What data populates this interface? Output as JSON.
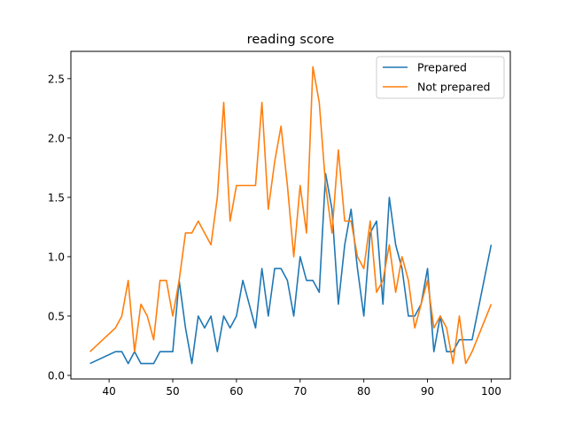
{
  "chart_data": {
    "type": "line",
    "title": "reading score",
    "xlabel": "",
    "ylabel": "",
    "xlim": [
      34,
      103
    ],
    "ylim": [
      -0.03,
      2.73
    ],
    "xticks": [
      40,
      50,
      60,
      70,
      80,
      90,
      100
    ],
    "yticks": [
      0.0,
      0.5,
      1.0,
      1.5,
      2.0,
      2.5
    ],
    "ytick_labels": [
      "0.0",
      "0.5",
      "1.0",
      "1.5",
      "2.0",
      "2.5"
    ],
    "grid": false,
    "legend": "top-right",
    "series": [
      {
        "name": "Prepared",
        "color": "#1f77b4",
        "x": [
          37,
          41,
          42,
          43,
          44,
          45,
          46,
          47,
          48,
          49,
          50,
          51,
          52,
          53,
          54,
          55,
          56,
          57,
          58,
          59,
          60,
          61,
          62,
          63,
          64,
          65,
          66,
          67,
          68,
          69,
          70,
          71,
          72,
          73,
          74,
          75,
          76,
          77,
          78,
          79,
          80,
          81,
          82,
          83,
          84,
          85,
          86,
          87,
          88,
          89,
          90,
          91,
          92,
          93,
          94,
          95,
          96,
          97,
          100
        ],
        "y": [
          0.1,
          0.2,
          0.2,
          0.1,
          0.2,
          0.1,
          0.1,
          0.1,
          0.2,
          0.2,
          0.2,
          0.8,
          0.4,
          0.1,
          0.5,
          0.4,
          0.5,
          0.2,
          0.5,
          0.4,
          0.5,
          0.8,
          0.6,
          0.4,
          0.9,
          0.5,
          0.9,
          0.9,
          0.8,
          0.5,
          1.0,
          0.8,
          0.8,
          0.7,
          1.7,
          1.4,
          0.6,
          1.1,
          1.4,
          0.9,
          0.5,
          1.2,
          1.3,
          0.6,
          1.5,
          1.1,
          0.9,
          0.5,
          0.5,
          0.6,
          0.9,
          0.2,
          0.5,
          0.2,
          0.2,
          0.3,
          0.3,
          0.3,
          1.1
        ]
      },
      {
        "name": "Not prepared",
        "color": "#ff7f0e",
        "x": [
          37,
          41,
          42,
          43,
          44,
          45,
          46,
          47,
          48,
          49,
          50,
          51,
          52,
          53,
          54,
          55,
          56,
          57,
          58,
          59,
          60,
          61,
          62,
          63,
          64,
          65,
          66,
          67,
          68,
          69,
          70,
          71,
          72,
          73,
          74,
          75,
          76,
          77,
          78,
          79,
          80,
          81,
          82,
          83,
          84,
          85,
          86,
          87,
          88,
          89,
          90,
          91,
          92,
          93,
          94,
          95,
          96,
          97,
          100
        ],
        "y": [
          0.2,
          0.4,
          0.5,
          0.8,
          0.2,
          0.6,
          0.5,
          0.3,
          0.8,
          0.8,
          0.5,
          0.8,
          1.2,
          1.2,
          1.3,
          1.2,
          1.1,
          1.5,
          2.3,
          1.3,
          1.6,
          1.6,
          1.6,
          1.6,
          2.3,
          1.4,
          1.8,
          2.1,
          1.6,
          1.0,
          1.6,
          1.2,
          2.6,
          2.3,
          1.6,
          1.2,
          1.9,
          1.3,
          1.3,
          1.0,
          0.9,
          1.3,
          0.7,
          0.8,
          1.1,
          0.7,
          1.0,
          0.8,
          0.4,
          0.6,
          0.8,
          0.4,
          0.5,
          0.4,
          0.1,
          0.5,
          0.1,
          0.2,
          0.6
        ]
      }
    ]
  }
}
